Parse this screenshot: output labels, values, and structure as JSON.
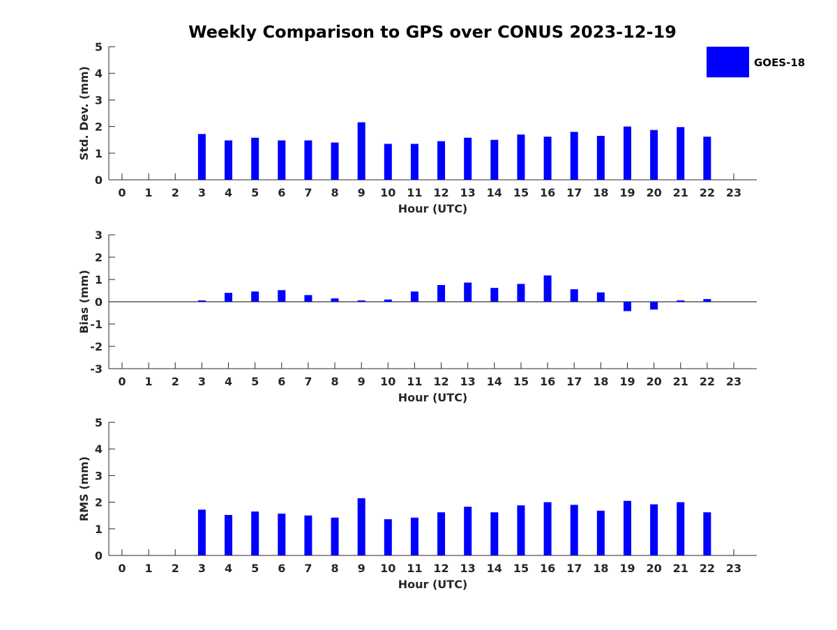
{
  "title": "Weekly Comparison to GPS over CONUS 2023-12-19",
  "legend": {
    "label": "GOES-18",
    "color": "#0000ff",
    "placement": "top-right"
  },
  "chart_data": [
    {
      "type": "bar",
      "ylabel": "Std. Dev. (mm)",
      "xlabel": "Hour (UTC)",
      "ylim": [
        0,
        5
      ],
      "yticks": [
        "0",
        "1",
        "2",
        "3",
        "4",
        "5"
      ],
      "categories": [
        "0",
        "1",
        "2",
        "3",
        "4",
        "5",
        "6",
        "7",
        "8",
        "9",
        "10",
        "11",
        "12",
        "13",
        "14",
        "15",
        "16",
        "17",
        "18",
        "19",
        "20",
        "21",
        "22",
        "23"
      ],
      "series": [
        {
          "name": "GOES-18",
          "values": [
            null,
            null,
            null,
            1.72,
            1.48,
            1.58,
            1.48,
            1.48,
            1.4,
            2.16,
            1.35,
            1.35,
            1.45,
            1.58,
            1.5,
            1.7,
            1.62,
            1.8,
            1.65,
            2.0,
            1.87,
            1.98,
            1.62,
            null
          ]
        }
      ]
    },
    {
      "type": "bar",
      "ylabel": "Bias (mm)",
      "xlabel": "Hour (UTC)",
      "ylim": [
        -3,
        3
      ],
      "yticks": [
        "-3",
        "-2",
        "-1",
        "0",
        "1",
        "2",
        "3"
      ],
      "zero_line": true,
      "categories": [
        "0",
        "1",
        "2",
        "3",
        "4",
        "5",
        "6",
        "7",
        "8",
        "9",
        "10",
        "11",
        "12",
        "13",
        "14",
        "15",
        "16",
        "17",
        "18",
        "19",
        "20",
        "21",
        "22",
        "23"
      ],
      "series": [
        {
          "name": "GOES-18",
          "values": [
            null,
            null,
            null,
            0.06,
            0.4,
            0.46,
            0.52,
            0.3,
            0.15,
            0.06,
            0.1,
            0.46,
            0.75,
            0.86,
            0.62,
            0.8,
            1.18,
            0.56,
            0.42,
            -0.42,
            -0.35,
            0.06,
            0.12,
            null
          ]
        }
      ]
    },
    {
      "type": "bar",
      "ylabel": "RMS (mm)",
      "xlabel": "Hour (UTC)",
      "ylim": [
        0,
        5
      ],
      "yticks": [
        "0",
        "1",
        "2",
        "3",
        "4",
        "5"
      ],
      "categories": [
        "0",
        "1",
        "2",
        "3",
        "4",
        "5",
        "6",
        "7",
        "8",
        "9",
        "10",
        "11",
        "12",
        "13",
        "14",
        "15",
        "16",
        "17",
        "18",
        "19",
        "20",
        "21",
        "22",
        "23"
      ],
      "series": [
        {
          "name": "GOES-18",
          "values": [
            null,
            null,
            null,
            1.72,
            1.52,
            1.65,
            1.57,
            1.5,
            1.42,
            2.15,
            1.36,
            1.42,
            1.62,
            1.83,
            1.62,
            1.88,
            2.0,
            1.9,
            1.68,
            2.05,
            1.92,
            2.0,
            1.62,
            null
          ]
        }
      ]
    }
  ]
}
